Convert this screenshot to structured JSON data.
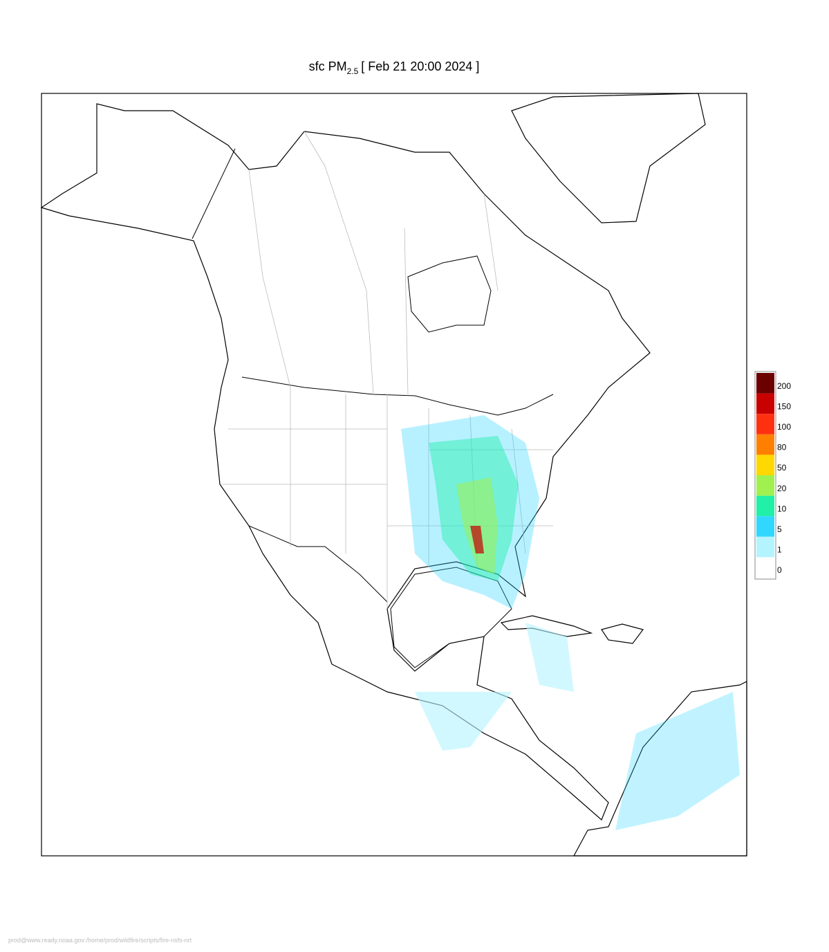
{
  "title": {
    "prefix": "sfc PM",
    "subscript": "2.5",
    "suffix": "[ Feb 21 20:00 2024 ]"
  },
  "legend": {
    "levels": [
      {
        "label": 200,
        "color": "#6b0000"
      },
      {
        "label": 150,
        "color": "#c80000"
      },
      {
        "label": 100,
        "color": "#ff3010"
      },
      {
        "label": 80,
        "color": "#ff8000"
      },
      {
        "label": 50,
        "color": "#ffd800"
      },
      {
        "label": 20,
        "color": "#a0f050"
      },
      {
        "label": 10,
        "color": "#20f0a8"
      },
      {
        "label": 5,
        "color": "#30d8ff"
      },
      {
        "label": 1,
        "color": "#b4f4ff"
      },
      {
        "label": 0,
        "color": "#ffffff"
      }
    ]
  },
  "footer": "prod@www.ready.noaa.gov:/home/prod/wildfire/scripts/fire-nsfs-nrt"
}
